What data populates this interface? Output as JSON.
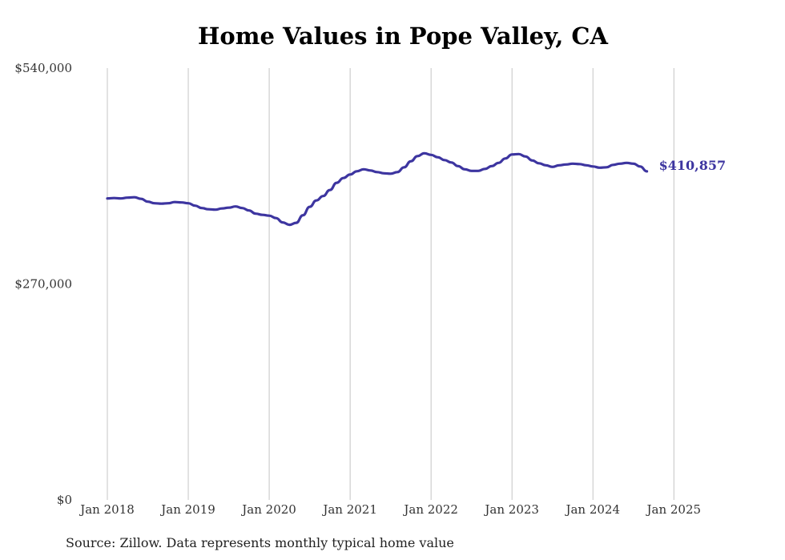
{
  "chart_data": {
    "type": "line",
    "title": "Home Values in Pope Valley, CA",
    "xlabel": "",
    "ylabel": "",
    "x_tick_labels": [
      "Jan 2018",
      "Jan 2019",
      "Jan 2020",
      "Jan 2021",
      "Jan 2022",
      "Jan 2023",
      "Jan 2024",
      "Jan 2025"
    ],
    "y_tick_labels": [
      "$540,000",
      "$270,000",
      "$0"
    ],
    "y_ticks": [
      540000,
      270000,
      0
    ],
    "ylim": [
      0,
      540000
    ],
    "xlim": [
      "2018-01",
      "2025-05"
    ],
    "grid": "vertical",
    "legend": "none",
    "end_label": "$410,857",
    "series": [
      {
        "color": "#3d35a0",
        "points": [
          [
            "2018-01",
            377000
          ],
          [
            "2018-02",
            377500
          ],
          [
            "2018-03",
            377000
          ],
          [
            "2018-04",
            378000
          ],
          [
            "2018-05",
            378500
          ],
          [
            "2018-06",
            376500
          ],
          [
            "2018-07",
            373000
          ],
          [
            "2018-08",
            371000
          ],
          [
            "2018-09",
            370500
          ],
          [
            "2018-10",
            371000
          ],
          [
            "2018-11",
            372500
          ],
          [
            "2018-12",
            372000
          ],
          [
            "2019-01",
            371000
          ],
          [
            "2019-02",
            368000
          ],
          [
            "2019-03",
            365000
          ],
          [
            "2019-04",
            363500
          ],
          [
            "2019-05",
            363000
          ],
          [
            "2019-06",
            364500
          ],
          [
            "2019-07",
            365500
          ],
          [
            "2019-08",
            367000
          ],
          [
            "2019-09",
            365000
          ],
          [
            "2019-10",
            362000
          ],
          [
            "2019-11",
            358000
          ],
          [
            "2019-12",
            356500
          ],
          [
            "2020-01",
            355500
          ],
          [
            "2020-02",
            352500
          ],
          [
            "2020-03",
            347000
          ],
          [
            "2020-04",
            344000
          ],
          [
            "2020-05",
            346500
          ],
          [
            "2020-06",
            356000
          ],
          [
            "2020-07",
            366500
          ],
          [
            "2020-08",
            374500
          ],
          [
            "2020-09",
            380000
          ],
          [
            "2020-10",
            387500
          ],
          [
            "2020-11",
            396500
          ],
          [
            "2020-12",
            402500
          ],
          [
            "2021-01",
            407000
          ],
          [
            "2021-02",
            411000
          ],
          [
            "2021-03",
            413500
          ],
          [
            "2021-04",
            412000
          ],
          [
            "2021-05",
            410000
          ],
          [
            "2021-06",
            408500
          ],
          [
            "2021-07",
            408000
          ],
          [
            "2021-08",
            410000
          ],
          [
            "2021-09",
            416000
          ],
          [
            "2021-10",
            423500
          ],
          [
            "2021-11",
            430000
          ],
          [
            "2021-12",
            433500
          ],
          [
            "2022-01",
            431500
          ],
          [
            "2022-02",
            428500
          ],
          [
            "2022-03",
            425000
          ],
          [
            "2022-04",
            422000
          ],
          [
            "2022-05",
            417500
          ],
          [
            "2022-06",
            413500
          ],
          [
            "2022-07",
            411500
          ],
          [
            "2022-08",
            411500
          ],
          [
            "2022-09",
            414000
          ],
          [
            "2022-10",
            417500
          ],
          [
            "2022-11",
            421500
          ],
          [
            "2022-12",
            427000
          ],
          [
            "2023-01",
            432000
          ],
          [
            "2023-02",
            432500
          ],
          [
            "2023-03",
            429500
          ],
          [
            "2023-04",
            424500
          ],
          [
            "2023-05",
            421000
          ],
          [
            "2023-06",
            418500
          ],
          [
            "2023-07",
            416500
          ],
          [
            "2023-08",
            418500
          ],
          [
            "2023-09",
            419500
          ],
          [
            "2023-10",
            420500
          ],
          [
            "2023-11",
            420000
          ],
          [
            "2023-12",
            418500
          ],
          [
            "2024-01",
            417000
          ],
          [
            "2024-02",
            415500
          ],
          [
            "2024-03",
            416000
          ],
          [
            "2024-04",
            419000
          ],
          [
            "2024-05",
            420500
          ],
          [
            "2024-06",
            421500
          ],
          [
            "2024-07",
            420500
          ],
          [
            "2024-08",
            417000
          ],
          [
            "2024-09",
            410857
          ]
        ]
      }
    ]
  },
  "footer": {
    "source": "Source: Zillow. Data represents monthly typical home value"
  }
}
